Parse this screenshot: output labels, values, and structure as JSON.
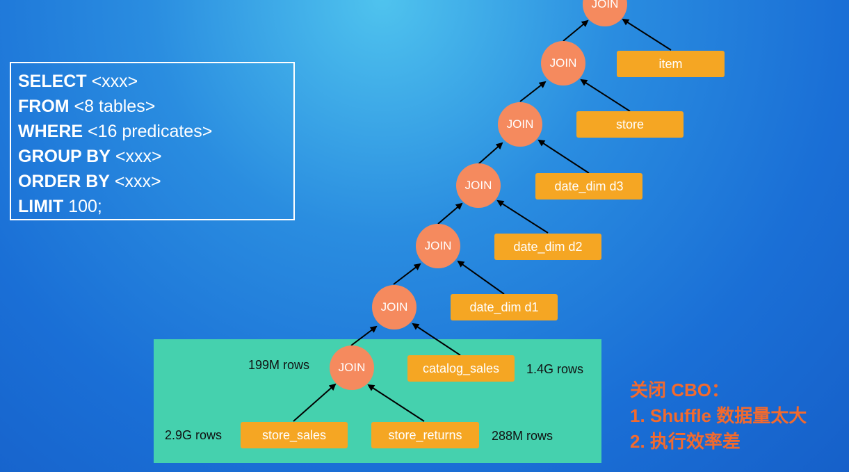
{
  "sql": {
    "lines": [
      {
        "kw": "SELECT",
        "rest": " <xxx>"
      },
      {
        "kw": "FROM",
        "rest": " <8 tables>"
      },
      {
        "kw": "WHERE",
        "rest": " <16 predicates>"
      },
      {
        "kw": "GROUP BY",
        "rest": " <xxx>"
      },
      {
        "kw": "ORDER BY",
        "rest": " <xxx>"
      },
      {
        "kw": "LIMIT",
        "rest": " 100;"
      }
    ]
  },
  "join_label": "JOIN",
  "tables": {
    "item": "item",
    "store": "store",
    "date_dim_d3": "date_dim d3",
    "date_dim_d2": "date_dim d2",
    "date_dim_d1": "date_dim d1",
    "catalog_sales": "catalog_sales",
    "store_sales": "store_sales",
    "store_returns": "store_returns"
  },
  "row_counts": {
    "join_bottom": "199M rows",
    "catalog_sales": "1.4G rows",
    "store_sales": "2.9G rows",
    "store_returns": "288M rows"
  },
  "note": {
    "title": "关闭 CBO：",
    "items": [
      "1. Shuffle 数据量太大",
      "2. 执行效率差"
    ]
  },
  "colors": {
    "join_node": "#f58a5e",
    "table_node": "#f5a623",
    "highlight": "#45d1ae",
    "note_text": "#f26a2e"
  }
}
